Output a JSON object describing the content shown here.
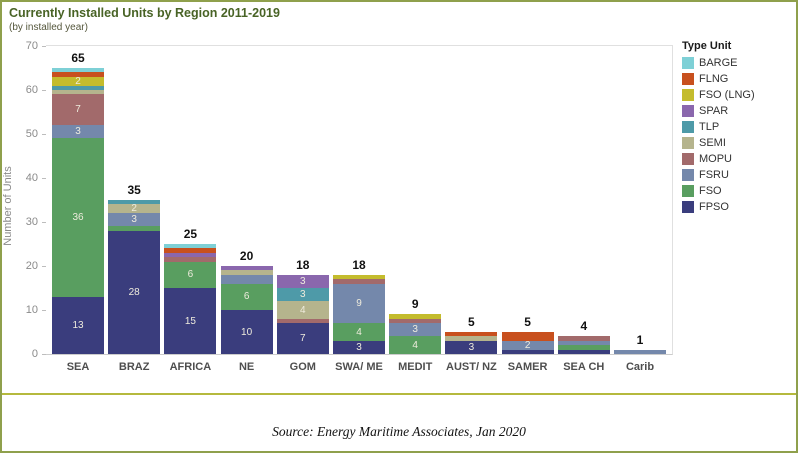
{
  "header": {
    "title": "Currently Installed Units by Region 2011-2019",
    "subtitle": "(by installed year)"
  },
  "source_note": "Source: Energy Maritime Associates, Jan 2020",
  "accent_colors": {
    "outer_border": "#8fa04c",
    "separator_line": "#b5b93d",
    "title_text": "#486325"
  },
  "chart_data": {
    "type": "bar",
    "variant": "stacked-vertical",
    "title": "Currently Installed Units by Region 2011-2019",
    "subtitle": "(by installed year)",
    "xlabel": "",
    "ylabel": "Number of Units",
    "ylim": [
      0,
      70
    ],
    "yticks": [
      0,
      10,
      20,
      30,
      40,
      50,
      60,
      70
    ],
    "grid": false,
    "legend_position": "right",
    "legend_title": "Type Unit",
    "legend_order_top_to_bottom": [
      "BARGE",
      "FLNG",
      "FSO (LNG)",
      "SPAR",
      "TLP",
      "SEMI",
      "MOPU",
      "FSRU",
      "FSO",
      "FPSO"
    ],
    "stack_order_bottom_to_top": [
      "FPSO",
      "FSO",
      "FSRU",
      "MOPU",
      "SEMI",
      "TLP",
      "SPAR",
      "FSO (LNG)",
      "FLNG",
      "BARGE"
    ],
    "colors": {
      "FPSO": "#3a3d7d",
      "FSO": "#599e60",
      "FSRU": "#7488ab",
      "MOPU": "#a26a6b",
      "SEMI": "#b5b48d",
      "TLP": "#4e9aa8",
      "SPAR": "#8a67ad",
      "FSO (LNG)": "#c4bc2d",
      "FLNG": "#c8501e",
      "BARGE": "#7ed0d6"
    },
    "categories": [
      "SEA",
      "BRAZ",
      "AFRICA",
      "NE",
      "GOM",
      "SWA/ ME",
      "MEDIT",
      "AUST/ NZ",
      "SAMER",
      "SEA CH",
      "Carib"
    ],
    "totals": [
      65,
      35,
      25,
      20,
      18,
      18,
      9,
      5,
      5,
      4,
      1
    ],
    "bars": [
      {
        "category": "SEA",
        "total": 65,
        "segments": [
          {
            "type": "FPSO",
            "value": 13,
            "label": "13"
          },
          {
            "type": "FSO",
            "value": 36,
            "label": "36"
          },
          {
            "type": "FSRU",
            "value": 3,
            "label": "3"
          },
          {
            "type": "MOPU",
            "value": 7,
            "label": "7"
          },
          {
            "type": "SEMI",
            "value": 1,
            "label": ""
          },
          {
            "type": "TLP",
            "value": 1,
            "label": ""
          },
          {
            "type": "FSO (LNG)",
            "value": 2,
            "label": "2"
          },
          {
            "type": "FLNG",
            "value": 1,
            "label": ""
          },
          {
            "type": "BARGE",
            "value": 1,
            "label": ""
          }
        ]
      },
      {
        "category": "BRAZ",
        "total": 35,
        "segments": [
          {
            "type": "FPSO",
            "value": 28,
            "label": "28"
          },
          {
            "type": "FSO",
            "value": 1,
            "label": ""
          },
          {
            "type": "FSRU",
            "value": 3,
            "label": "3"
          },
          {
            "type": "SEMI",
            "value": 2,
            "label": "2"
          },
          {
            "type": "TLP",
            "value": 1,
            "label": ""
          }
        ]
      },
      {
        "category": "AFRICA",
        "total": 25,
        "segments": [
          {
            "type": "FPSO",
            "value": 15,
            "label": "15"
          },
          {
            "type": "FSO",
            "value": 6,
            "label": "6"
          },
          {
            "type": "MOPU",
            "value": 1,
            "label": ""
          },
          {
            "type": "SPAR",
            "value": 1,
            "label": ""
          },
          {
            "type": "FLNG",
            "value": 1,
            "label": ""
          },
          {
            "type": "BARGE",
            "value": 1,
            "label": ""
          }
        ]
      },
      {
        "category": "NE",
        "total": 20,
        "segments": [
          {
            "type": "FPSO",
            "value": 10,
            "label": "10"
          },
          {
            "type": "FSO",
            "value": 6,
            "label": "6"
          },
          {
            "type": "FSRU",
            "value": 2,
            "label": ""
          },
          {
            "type": "SEMI",
            "value": 1,
            "label": ""
          },
          {
            "type": "SPAR",
            "value": 1,
            "label": ""
          }
        ]
      },
      {
        "category": "GOM",
        "total": 18,
        "segments": [
          {
            "type": "FPSO",
            "value": 7,
            "label": "7"
          },
          {
            "type": "MOPU",
            "value": 1,
            "label": ""
          },
          {
            "type": "SEMI",
            "value": 4,
            "label": "4"
          },
          {
            "type": "TLP",
            "value": 3,
            "label": "3"
          },
          {
            "type": "SPAR",
            "value": 3,
            "label": "3"
          }
        ]
      },
      {
        "category": "SWA/ ME",
        "total": 18,
        "segments": [
          {
            "type": "FPSO",
            "value": 3,
            "label": "3"
          },
          {
            "type": "FSO",
            "value": 4,
            "label": "4"
          },
          {
            "type": "FSRU",
            "value": 9,
            "label": "9"
          },
          {
            "type": "MOPU",
            "value": 1,
            "label": ""
          },
          {
            "type": "FSO (LNG)",
            "value": 1,
            "label": ""
          }
        ]
      },
      {
        "category": "MEDIT",
        "total": 9,
        "segments": [
          {
            "type": "FSO",
            "value": 4,
            "label": "4"
          },
          {
            "type": "FSRU",
            "value": 3,
            "label": "3"
          },
          {
            "type": "MOPU",
            "value": 1,
            "label": ""
          },
          {
            "type": "FSO (LNG)",
            "value": 1,
            "label": ""
          }
        ]
      },
      {
        "category": "AUST/ NZ",
        "total": 5,
        "segments": [
          {
            "type": "FPSO",
            "value": 3,
            "label": "3"
          },
          {
            "type": "SEMI",
            "value": 1,
            "label": ""
          },
          {
            "type": "FLNG",
            "value": 1,
            "label": ""
          }
        ]
      },
      {
        "category": "SAMER",
        "total": 5,
        "segments": [
          {
            "type": "FPSO",
            "value": 1,
            "label": ""
          },
          {
            "type": "FSRU",
            "value": 2,
            "label": "2"
          },
          {
            "type": "FLNG",
            "value": 2,
            "label": ""
          }
        ]
      },
      {
        "category": "SEA CH",
        "total": 4,
        "segments": [
          {
            "type": "FPSO",
            "value": 1,
            "label": ""
          },
          {
            "type": "FSO",
            "value": 1,
            "label": ""
          },
          {
            "type": "FSRU",
            "value": 1,
            "label": ""
          },
          {
            "type": "MOPU",
            "value": 1,
            "label": ""
          }
        ]
      },
      {
        "category": "Carib",
        "total": 1,
        "segments": [
          {
            "type": "FSRU",
            "value": 1,
            "label": ""
          }
        ]
      }
    ]
  }
}
